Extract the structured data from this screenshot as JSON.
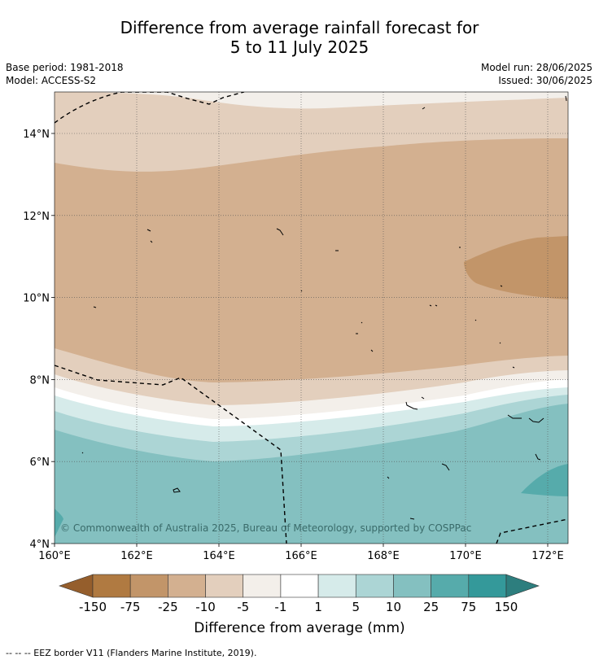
{
  "title": {
    "line1": "Difference from average rainfall forecast for",
    "line2": "5 to 11 July 2025"
  },
  "meta": {
    "base_period": "Base period: 1981-2018",
    "model": "Model: ACCESS-S2",
    "model_run": "Model run: 28/06/2025",
    "issued": "Issued: 30/06/2025"
  },
  "map": {
    "lon_ticks": [
      "160°E",
      "162°E",
      "164°E",
      "166°E",
      "168°E",
      "170°E",
      "172°E"
    ],
    "lat_ticks": [
      "4°N",
      "6°N",
      "8°N",
      "10°N",
      "12°N",
      "14°N"
    ],
    "copyright": "© Commonwealth of Australia 2025, Bureau of Meteorology, supported by COSPPac"
  },
  "colorbar": {
    "label": "Difference from average (mm)",
    "tick_labels": [
      "-150",
      "-75",
      "-25",
      "-10",
      "-5",
      "-1",
      "1",
      "5",
      "10",
      "25",
      "75",
      "150"
    ],
    "colors": {
      "lt_minus150": "#955e2c",
      "m150_m75": "#b07a41",
      "m75_m25": "#c29569",
      "m25_m10": "#d3b090",
      "m10_m5": "#e3cfbd",
      "m5_m1": "#f3efea",
      "m1_1": "#ffffff",
      "p1_5": "#d6ebea",
      "p5_10": "#acd5d5",
      "p10_25": "#84c0c0",
      "p25_75": "#56abab",
      "p75_150": "#34999a",
      "gt_150": "#2d7e7e"
    }
  },
  "footnote": "-- -- -- EEZ border V11 (Flanders Marine Institute, 2019)."
}
